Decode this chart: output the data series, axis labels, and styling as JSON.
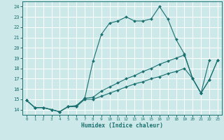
{
  "xlabel": "Humidex (Indice chaleur)",
  "xlim": [
    -0.5,
    23.5
  ],
  "ylim": [
    13.5,
    24.5
  ],
  "xticks": [
    0,
    1,
    2,
    3,
    4,
    5,
    6,
    7,
    8,
    9,
    10,
    11,
    12,
    13,
    14,
    15,
    16,
    17,
    18,
    19,
    20,
    21,
    22,
    23
  ],
  "yticks": [
    14,
    15,
    16,
    17,
    18,
    19,
    20,
    21,
    22,
    23,
    24
  ],
  "bg_color": "#cce8e8",
  "line_color": "#1a7070",
  "grid_color": "#ffffff",
  "curve_max_x": [
    0,
    1,
    2,
    3,
    4,
    5,
    6,
    7,
    8,
    9,
    10,
    11,
    12,
    13,
    14,
    15,
    16,
    17,
    18,
    19,
    20,
    21,
    22
  ],
  "curve_max_y": [
    14.9,
    14.2,
    14.2,
    14.0,
    13.8,
    14.3,
    14.3,
    15.1,
    18.7,
    21.3,
    22.4,
    22.6,
    23.0,
    22.6,
    22.6,
    22.8,
    24.0,
    22.8,
    20.8,
    19.4,
    17.0,
    15.6,
    18.8
  ],
  "curve_mid_x": [
    0,
    1,
    2,
    3,
    4,
    5,
    6,
    7,
    8,
    9,
    10,
    11,
    12,
    13,
    14,
    15,
    16,
    17,
    18,
    19,
    20,
    21,
    22,
    23
  ],
  "curve_mid_y": [
    14.9,
    14.2,
    14.2,
    14.0,
    13.8,
    14.3,
    14.4,
    15.1,
    15.2,
    15.8,
    16.2,
    16.6,
    17.0,
    17.3,
    17.7,
    18.0,
    18.4,
    18.7,
    19.0,
    19.3,
    17.0,
    15.6,
    16.9,
    18.8
  ],
  "curve_bot_x": [
    0,
    1,
    2,
    3,
    4,
    5,
    6,
    7,
    8,
    9,
    10,
    11,
    12,
    13,
    14,
    15,
    16,
    17,
    18,
    19,
    20,
    21,
    22,
    23
  ],
  "curve_bot_y": [
    14.9,
    14.2,
    14.2,
    14.0,
    13.8,
    14.3,
    14.3,
    15.0,
    15.0,
    15.3,
    15.6,
    15.9,
    16.2,
    16.5,
    16.7,
    17.0,
    17.2,
    17.5,
    17.7,
    18.0,
    17.0,
    15.6,
    16.9,
    18.8
  ]
}
